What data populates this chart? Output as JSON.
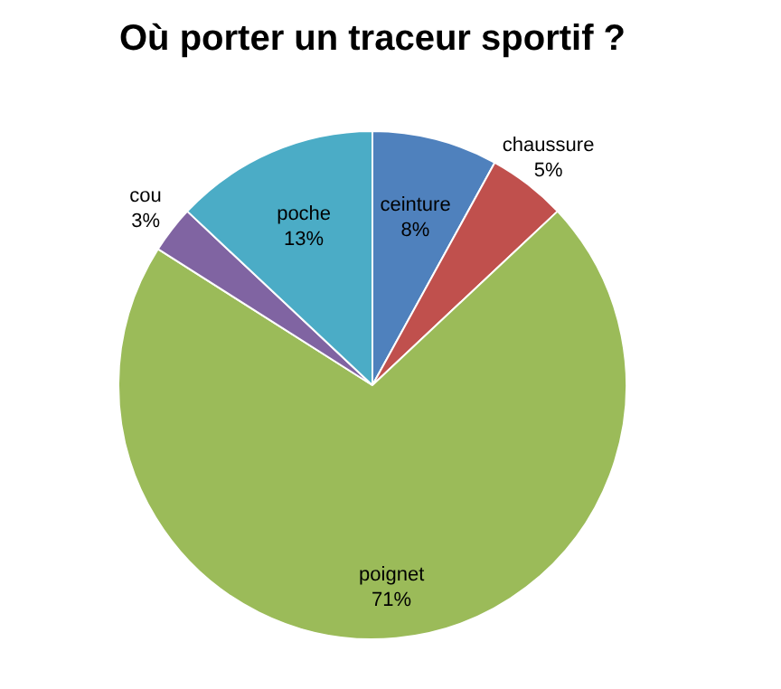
{
  "chart_data": {
    "type": "pie",
    "title": "Où porter un traceur sportif ?",
    "categories": [
      "ceinture",
      "chaussure",
      "poignet",
      "cou",
      "poche"
    ],
    "values": [
      8,
      5,
      71,
      3,
      13
    ],
    "colors": [
      "#4f81bd",
      "#c0504d",
      "#9bbb59",
      "#8064a2",
      "#4bacc6"
    ],
    "value_labels": [
      "8%",
      "5%",
      "71%",
      "3%",
      "13%"
    ],
    "legend": false
  }
}
